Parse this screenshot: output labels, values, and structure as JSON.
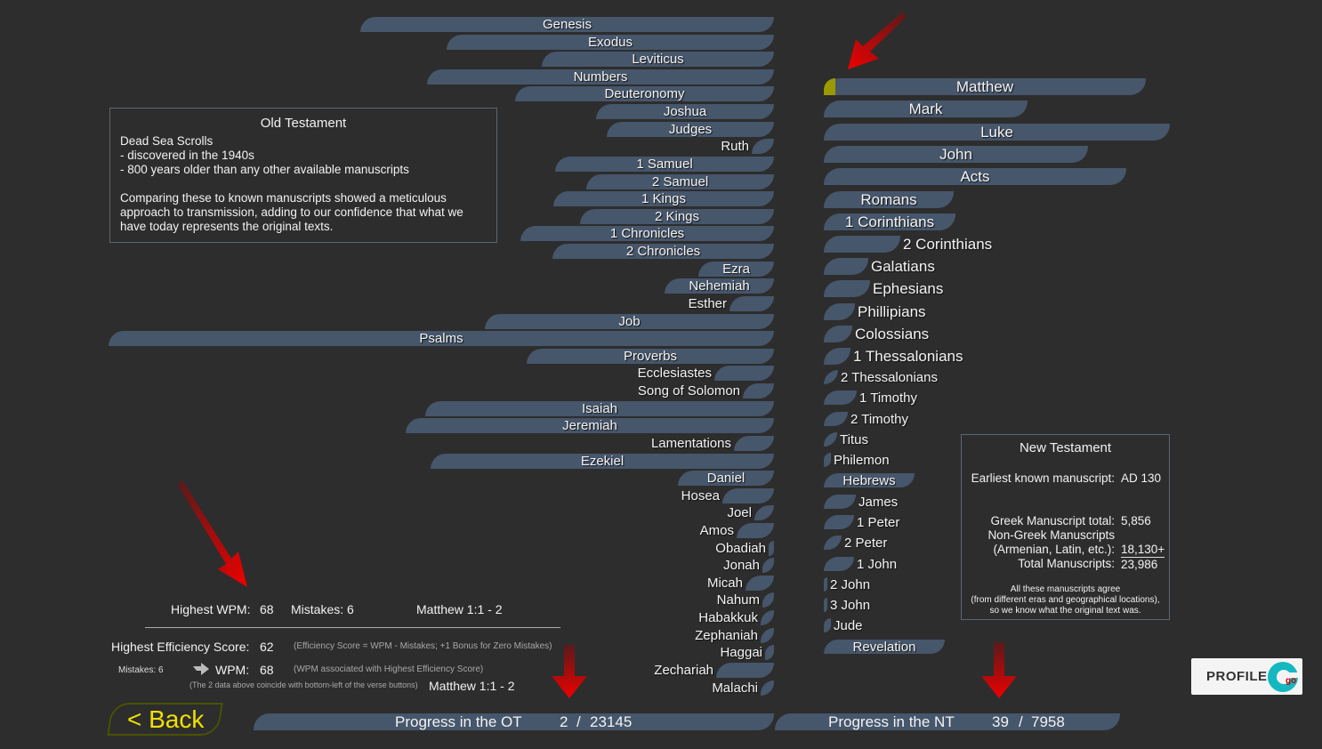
{
  "old_testament": {
    "books": [
      "Genesis",
      "Exodus",
      "Leviticus",
      "Numbers",
      "Deuteronomy",
      "Joshua",
      "Judges",
      "Ruth",
      "1 Samuel",
      "2 Samuel",
      "1 Kings",
      "2 Kings",
      "1 Chronicles",
      "2 Chronicles",
      "Ezra",
      "Nehemiah",
      "Esther",
      "Job",
      "Psalms",
      "Proverbs",
      "Ecclesiastes",
      "Song of Solomon",
      "Isaiah",
      "Jeremiah",
      "Lamentations",
      "Ezekiel",
      "Daniel",
      "Hosea",
      "Joel",
      "Amos",
      "Obadiah",
      "Jonah",
      "Micah",
      "Nahum",
      "Habakkuk",
      "Zephaniah",
      "Haggai",
      "Zechariah",
      "Malachi"
    ],
    "info": {
      "title": "Old Testament",
      "lines": [
        "Dead Sea Scrolls",
        "- discovered in the 1940s",
        "- 800 years older than any other available manuscripts"
      ],
      "paragraph": "Comparing these to known manuscripts showed a meticulous approach to transmission, adding to our confidence that what we have today represents the original texts."
    },
    "progress": {
      "label": "Progress in the OT",
      "done": "2",
      "sep": "/",
      "total": "23145"
    }
  },
  "new_testament": {
    "books": [
      "Matthew",
      "Mark",
      "Luke",
      "John",
      "Acts",
      "Romans",
      "1 Corinthians",
      "2 Corinthians",
      "Galatians",
      "Ephesians",
      "Phillipians",
      "Colossians",
      "1 Thessalonians",
      "2 Thessalonians",
      "1 Timothy",
      "2 Timothy",
      "Titus",
      "Philemon",
      "Hebrews",
      "James",
      "1 Peter",
      "2 Peter",
      "1 John",
      "2 John",
      "3 John",
      "Jude",
      "Revelation"
    ],
    "matthew_progress_color": "#9a9a00",
    "info": {
      "title": "New Testament",
      "earliest_label": "Earliest known manuscript:",
      "earliest_value": "AD 130",
      "greek_label": "Greek Manuscript total:",
      "greek_value": "5,856",
      "nongreek_label1": "Non-Greek Manuscripts",
      "nongreek_label2": "(Armenian, Latin, etc.):",
      "nongreek_value": "18,130+",
      "total_label": "Total Manuscripts:",
      "total_value": "23,986",
      "note": [
        "All these manuscripts agree",
        "(from different eras and geographical locations),",
        "so we know what the original text was."
      ]
    },
    "progress": {
      "label": "Progress in the NT",
      "done": "39",
      "sep": "/",
      "total": "7958"
    }
  },
  "stats": {
    "highest_wpm_label": "Highest WPM:",
    "highest_wpm": "68",
    "mistakes_label": "Mistakes: 6",
    "wpm_verse": "Matthew 1:1 - 2",
    "efficiency_label": "Highest Efficiency Score:",
    "efficiency_value": "62",
    "efficiency_note": "(Efficiency Score = WPM - Mistakes; +1 Bonus for Zero Mistakes)",
    "eff_mistakes": "Mistakes: 6",
    "eff_wpm_label": "WPM:",
    "eff_wpm": "68",
    "eff_wpm_note": "(WPM associated with Highest Efficiency Score)",
    "coincide_note": "(The 2 data above coincide with bottom-left of the verse buttons)",
    "eff_verse": "Matthew 1:1 - 2"
  },
  "back_label": "< Back",
  "profile_label": "PROFILE",
  "colors": {
    "background": "#2d2d2d",
    "bar": "#46566b",
    "back_text": "#f0e000",
    "back_border": "#4a5200",
    "arrow": "#e00000"
  }
}
